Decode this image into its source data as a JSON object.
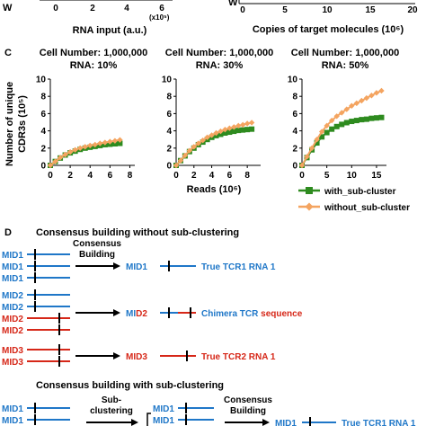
{
  "top": {
    "left_tick_labels": [
      "0",
      "2",
      "4",
      "6"
    ],
    "left_exponent": "(x10⁵)",
    "left_xlabel": "RNA input (a.u.)",
    "right_tick_labels": [
      "0",
      "5",
      "10",
      "15",
      "20"
    ],
    "right_xlabel": "Copies of target molecules (10⁶)",
    "y_fragment_left": "W",
    "y_fragment_right": "W"
  },
  "panel_c": {
    "letter": "C",
    "ylabel_line1": "Number of unique",
    "ylabel_line2": "CDR3s (10⁵)",
    "xlabel": "Reads (10⁶)",
    "legend": [
      "with_sub-cluster",
      "without_sub-cluster"
    ]
  },
  "colors": {
    "with": "#2e8b1f",
    "without": "#f4a460",
    "blue": "#1f77c8",
    "red": "#d62718"
  },
  "chart_data": [
    {
      "type": "line",
      "title": "Cell Number: 1,000,000",
      "subtitle": "RNA: 10%",
      "xlabel": "Reads (10⁶)",
      "ylabel": "Number of unique CDR3s (10⁵)",
      "xlim": [
        0,
        8.5
      ],
      "ylim": [
        0,
        10
      ],
      "xticks": [
        0,
        2,
        4,
        6,
        8
      ],
      "yticks": [
        0,
        2,
        4,
        6,
        8,
        10
      ],
      "xtick_labels": [
        "0",
        "2",
        "4",
        "6",
        "8"
      ],
      "ytick_labels": [
        "0",
        "2",
        "4",
        "6",
        "8",
        "10"
      ],
      "series": [
        {
          "name": "with_sub-cluster",
          "x": [
            0,
            0.5,
            1,
            1.5,
            2,
            2.5,
            3,
            3.5,
            4,
            4.5,
            5,
            5.5,
            6,
            6.5,
            7
          ],
          "y": [
            0,
            0.45,
            0.85,
            1.2,
            1.45,
            1.65,
            1.85,
            2.0,
            2.1,
            2.2,
            2.3,
            2.4,
            2.45,
            2.5,
            2.55
          ]
        },
        {
          "name": "without_sub-cluster",
          "x": [
            0,
            0.5,
            1,
            1.5,
            2,
            2.5,
            3,
            3.5,
            4,
            4.5,
            5,
            5.5,
            6,
            6.5,
            7
          ],
          "y": [
            0,
            0.45,
            0.9,
            1.25,
            1.55,
            1.8,
            2.0,
            2.15,
            2.3,
            2.4,
            2.55,
            2.65,
            2.75,
            2.85,
            2.95
          ]
        }
      ]
    },
    {
      "type": "line",
      "title": "Cell Number: 1,000,000",
      "subtitle": "RNA: 30%",
      "xlabel": "Reads (10⁶)",
      "xlim": [
        0,
        9.5
      ],
      "ylim": [
        0,
        10
      ],
      "xticks": [
        0,
        2,
        4,
        6,
        8
      ],
      "yticks": [
        0,
        2,
        4,
        6,
        8,
        10
      ],
      "xtick_labels": [
        "0",
        "2",
        "4",
        "6",
        "8"
      ],
      "ytick_labels": [
        "0",
        "2",
        "4",
        "6",
        "8",
        "10"
      ],
      "series": [
        {
          "name": "with_sub-cluster",
          "x": [
            0,
            0.5,
            1,
            1.5,
            2,
            2.5,
            3,
            3.5,
            4,
            4.5,
            5,
            5.5,
            6,
            6.5,
            7,
            7.5,
            8,
            8.5
          ],
          "y": [
            0,
            0.55,
            1.1,
            1.6,
            2.0,
            2.4,
            2.7,
            3.0,
            3.25,
            3.45,
            3.6,
            3.75,
            3.85,
            3.95,
            4.05,
            4.1,
            4.15,
            4.2
          ]
        },
        {
          "name": "without_sub-cluster",
          "x": [
            0,
            0.5,
            1,
            1.5,
            2,
            2.5,
            3,
            3.5,
            4,
            4.5,
            5,
            5.5,
            6,
            6.5,
            7,
            7.5,
            8,
            8.5
          ],
          "y": [
            0,
            0.55,
            1.15,
            1.7,
            2.15,
            2.55,
            2.9,
            3.25,
            3.5,
            3.75,
            3.95,
            4.15,
            4.3,
            4.45,
            4.6,
            4.7,
            4.85,
            4.95
          ]
        }
      ]
    },
    {
      "type": "line",
      "title": "Cell Number: 1,000,000",
      "subtitle": "RNA: 50%",
      "xlabel": "Reads (10⁶)",
      "xlim": [
        0,
        17
      ],
      "ylim": [
        0,
        10
      ],
      "xticks": [
        0,
        5,
        10,
        15
      ],
      "yticks": [
        0,
        2,
        4,
        6,
        8,
        10
      ],
      "xtick_labels": [
        "0",
        "5",
        "10",
        "15"
      ],
      "ytick_labels": [
        "0",
        "2",
        "4",
        "6",
        "8",
        "10"
      ],
      "series": [
        {
          "name": "with_sub-cluster",
          "x": [
            0,
            1,
            2,
            3,
            4,
            5,
            6,
            7,
            8,
            9,
            10,
            11,
            12,
            13,
            14,
            15,
            16
          ],
          "y": [
            0,
            0.9,
            1.8,
            2.6,
            3.3,
            3.8,
            4.2,
            4.5,
            4.75,
            4.95,
            5.1,
            5.2,
            5.3,
            5.35,
            5.45,
            5.5,
            5.55
          ]
        },
        {
          "name": "without_sub-cluster",
          "x": [
            0,
            1,
            2,
            3,
            4,
            5,
            6,
            7,
            8,
            9,
            10,
            11,
            12,
            13,
            14,
            15,
            16
          ],
          "y": [
            0,
            1.0,
            2.0,
            3.0,
            3.9,
            4.6,
            5.2,
            5.7,
            6.1,
            6.5,
            6.9,
            7.2,
            7.5,
            7.8,
            8.1,
            8.4,
            8.65
          ]
        }
      ]
    }
  ],
  "panel_d": {
    "letter": "D",
    "heading1": "Consensus building without sub-clustering",
    "heading2": "Consensus building with sub-clustering",
    "consensus": "Consensus",
    "building": "Building",
    "sub": "Sub-",
    "clustering": "clustering",
    "mid1": "MID1",
    "mid2": "MID2",
    "mid3": "MID3",
    "mid_prefix": "MI",
    "d2": "D2",
    "true_tcr1": "True TCR1 RNA 1",
    "true_tcr2": "True TCR2 RNA 1",
    "chimera1": "Chimera ",
    "chimera_tcr": "TCR",
    "chimera2": " sequence"
  }
}
